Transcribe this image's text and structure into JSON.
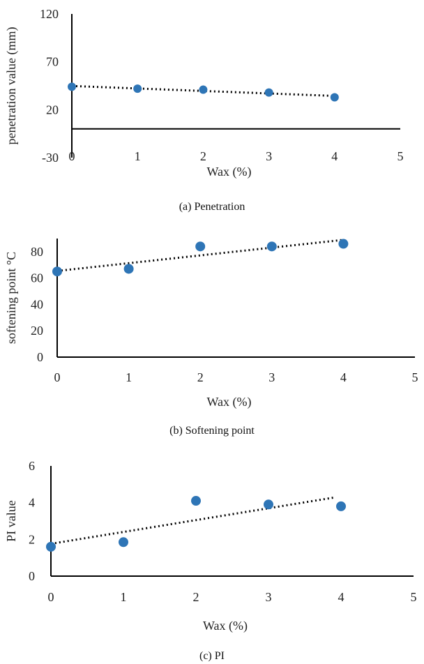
{
  "colors": {
    "marker": "#2e75b6",
    "axis": "#000000",
    "trendline": "#000000"
  },
  "chart_data": [
    {
      "type": "scatter",
      "caption": "(a) Penetration",
      "xlabel": "Wax (%)",
      "ylabel": "penetration value (mm)",
      "xlim": [
        0,
        5
      ],
      "ylim": [
        -30,
        120
      ],
      "x_ticks": [
        0,
        1,
        2,
        3,
        4,
        5
      ],
      "y_ticks": [
        -30,
        20,
        70,
        120
      ],
      "x_axis_at_y": 0,
      "trendline": "linear",
      "trend_x": [
        0,
        4
      ],
      "series": [
        {
          "x": [
            0,
            1,
            2,
            3,
            4
          ],
          "y": [
            44,
            42,
            41,
            38,
            33
          ]
        }
      ]
    },
    {
      "type": "scatter",
      "caption": "(b) Softening point",
      "xlabel": "Wax (%)",
      "ylabel": "softening point °C",
      "xlim": [
        0,
        5
      ],
      "ylim": [
        0,
        90
      ],
      "x_ticks": [
        0,
        1,
        2,
        3,
        4,
        5
      ],
      "y_ticks": [
        0,
        20,
        40,
        60,
        80
      ],
      "x_axis_at_y": 0,
      "trendline": "linear",
      "trend_x": [
        0,
        4
      ],
      "series": [
        {
          "x": [
            0,
            1,
            2,
            3,
            4
          ],
          "y": [
            65,
            67,
            84,
            84,
            86
          ]
        }
      ]
    },
    {
      "type": "scatter",
      "caption": "(c) PI",
      "xlabel": "Wax (%)",
      "ylabel": "PI value",
      "xlim": [
        0,
        5
      ],
      "ylim": [
        0,
        6
      ],
      "x_ticks": [
        0,
        1,
        2,
        3,
        4,
        5
      ],
      "y_ticks": [
        0,
        2,
        4,
        6
      ],
      "x_axis_at_y": 0,
      "trendline": "linear",
      "trend_x": [
        0,
        3.9
      ],
      "series": [
        {
          "x": [
            0,
            1,
            2,
            3,
            4
          ],
          "y": [
            1.6,
            1.85,
            4.1,
            3.9,
            3.8
          ]
        }
      ]
    }
  ]
}
